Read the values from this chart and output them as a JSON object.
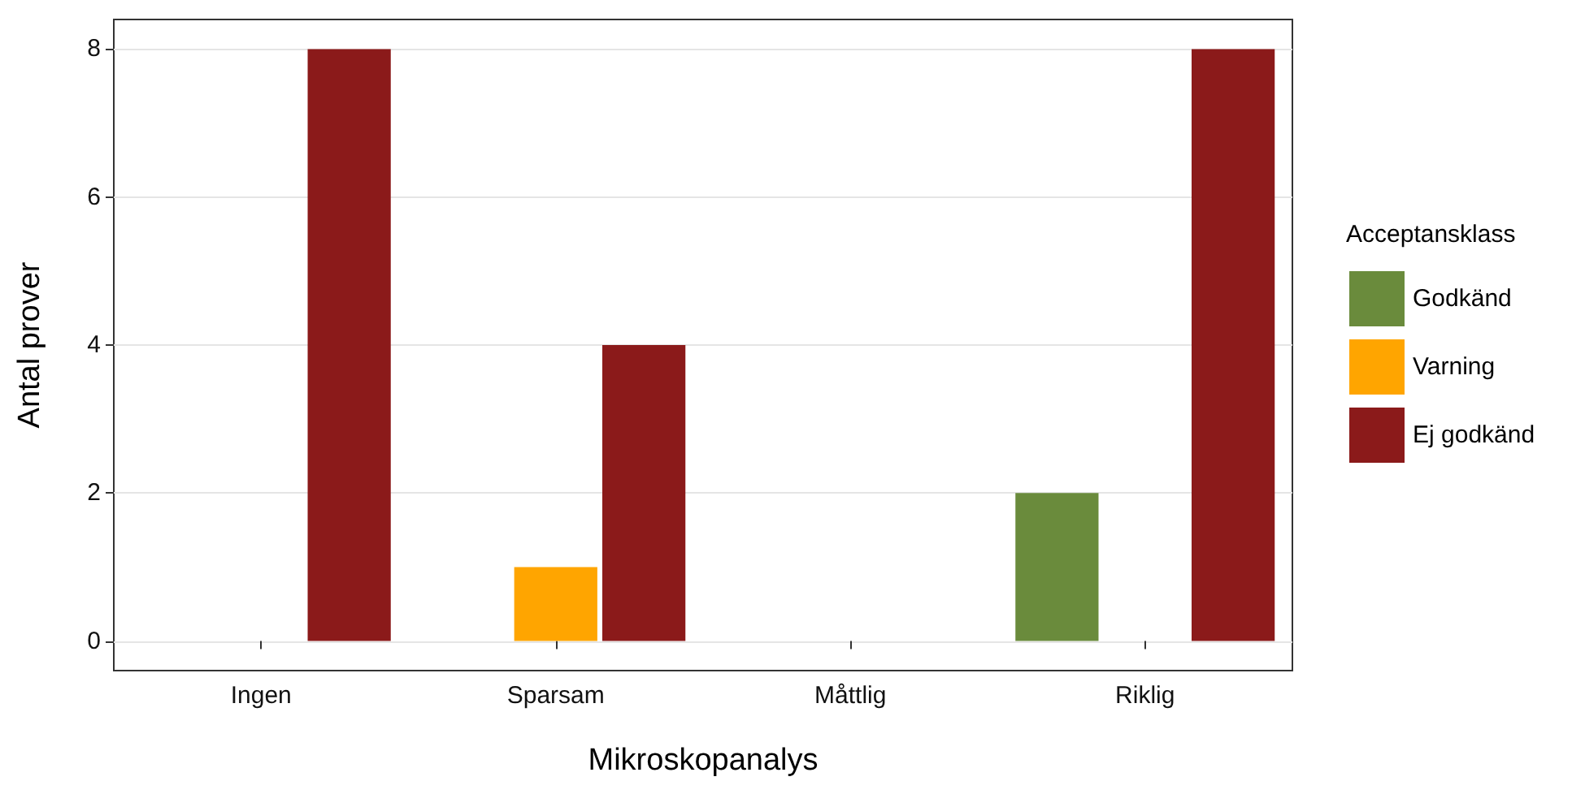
{
  "chart_data": {
    "type": "bar",
    "xlabel": "Mikroskopanalys",
    "ylabel": "Antal prover",
    "legend_title": "Acceptansklass",
    "categories": [
      "Ingen",
      "Sparsam",
      "Måttlig",
      "Riklig"
    ],
    "series": [
      {
        "name": "Godkänd",
        "color": "#6a8b3c",
        "values": [
          0,
          0,
          0,
          2
        ]
      },
      {
        "name": "Varning",
        "color": "#ffa500",
        "values": [
          0,
          1,
          0,
          0
        ]
      },
      {
        "name": "Ej godkänd",
        "color": "#8b1a1a",
        "values": [
          8,
          4,
          0,
          8
        ]
      }
    ],
    "ylim": [
      -0.4,
      8.4
    ],
    "yticks": [
      0,
      2,
      4,
      6,
      8
    ],
    "grid": "y",
    "legend": "right"
  }
}
